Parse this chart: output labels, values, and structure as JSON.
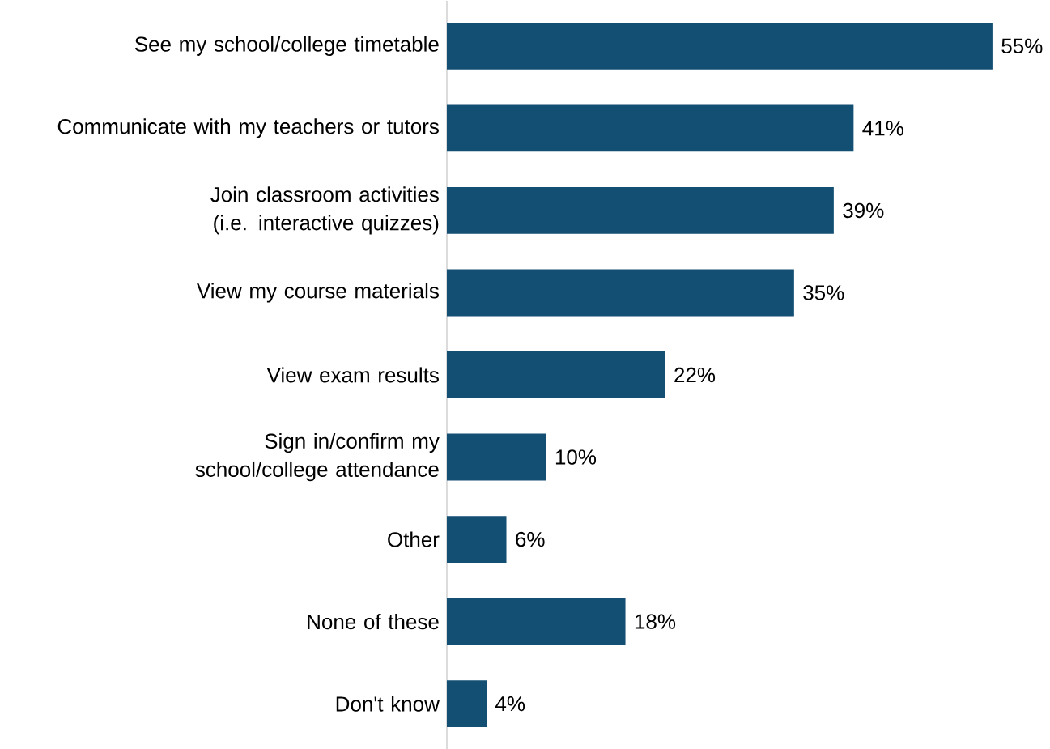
{
  "chart_data": {
    "type": "bar",
    "orientation": "horizontal",
    "color": "#124f73",
    "categories": [
      "See my school/college timetable",
      "Communicate with my teachers or tutors",
      "Join classroom activities (i.e. interactive quizzes)",
      "View my course materials",
      "View exam results",
      "Sign in/confirm my school/college attendance",
      "Other",
      "None of these",
      "Don't know"
    ],
    "values": [
      55,
      41,
      39,
      35,
      22,
      10,
      6,
      18,
      4
    ],
    "value_labels": [
      "55%",
      "41%",
      "39%",
      "35%",
      "22%",
      "10%",
      "6%",
      "18%",
      "4%"
    ]
  }
}
